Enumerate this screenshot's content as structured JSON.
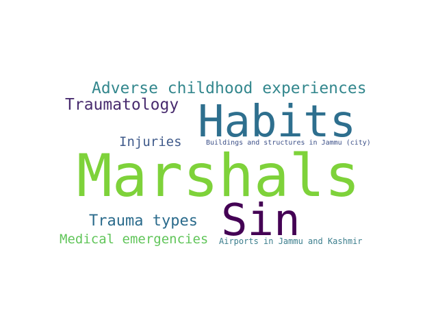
{
  "words": [
    {
      "text": "Marshals",
      "color": "#7ed23a"
    },
    {
      "text": "Habits",
      "color": "#2e6f8e"
    },
    {
      "text": "Sin",
      "color": "#440154"
    },
    {
      "text": "Adverse childhood experiences",
      "color": "#33878d"
    },
    {
      "text": "Traumatology",
      "color": "#482b6e"
    },
    {
      "text": "Injuries",
      "color": "#3f5a8a"
    },
    {
      "text": "Buildings and structures in Jammu (city)",
      "color": "#3b4f87"
    },
    {
      "text": "Trauma types",
      "color": "#2b6b8c"
    },
    {
      "text": "Medical emergencies",
      "color": "#61c55a"
    },
    {
      "text": "Airports in Jammu and Kashmir",
      "color": "#3a7d8c"
    }
  ]
}
